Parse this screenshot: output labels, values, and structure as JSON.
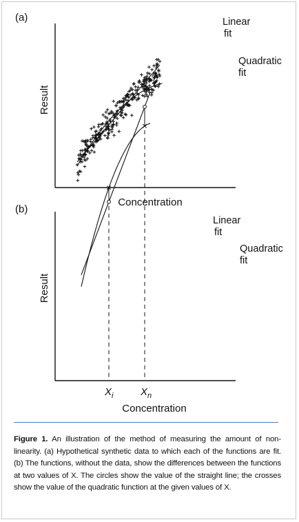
{
  "chart_data": [
    {
      "type": "scatter",
      "panel_label": "(a)",
      "xlabel": "Concentration",
      "ylabel": "Result",
      "series": [
        {
          "name": "Linear fit",
          "kind": "line",
          "x": [
            0.0,
            1.0
          ],
          "y": [
            0.06,
            0.98
          ]
        },
        {
          "name": "Quadratic fit",
          "kind": "curve",
          "x": [
            0.0,
            0.5,
            1.0
          ],
          "y": [
            0.02,
            0.55,
            0.8
          ]
        }
      ],
      "scatter_marker": "+",
      "approx_point_count": 300,
      "x_domain": [
        0.0,
        1.0
      ],
      "y_noise": 0.12,
      "annotations": [
        {
          "text_lines": [
            "Linear",
            "fit"
          ]
        },
        {
          "text_lines": [
            "Quadratic",
            "fit"
          ]
        }
      ],
      "difference_marked_at": "right end"
    },
    {
      "type": "line",
      "panel_label": "(b)",
      "xlabel": "Concentration",
      "ylabel": "Result",
      "series": [
        {
          "name": "Linear fit",
          "kind": "line",
          "x": [
            0.0,
            1.0
          ],
          "y": [
            0.04,
            0.98
          ]
        },
        {
          "name": "Quadratic fit",
          "kind": "curve",
          "x": [
            0.0,
            0.5,
            1.0
          ],
          "y": [
            -0.02,
            0.58,
            0.82
          ]
        }
      ],
      "x_ticks": [
        {
          "label": "X",
          "subscript": "i"
        },
        {
          "label": "X",
          "subscript": "n"
        }
      ],
      "annotations": [
        {
          "text_lines": [
            "Linear",
            "fit"
          ]
        },
        {
          "text_lines": [
            "Quadratic",
            "fit"
          ]
        }
      ],
      "markers": {
        "linear": "circle",
        "quadratic": "cross"
      }
    }
  ],
  "caption": {
    "lead": "Figure 1.",
    "text": " An illustration of the method of measuring the amount of non-linearity. (a) Hypothetical synthetic data to which each of the functions are fit. (b) The functions, without the data, show the differences between the functions at two values of X. The circles show the value of the straight line; the crosses show the value of the quadratic function at the given values of X."
  },
  "colors": {
    "ink": "#111111",
    "caption_rule": "#4a7bc8",
    "frame": "#c9c9c9"
  }
}
